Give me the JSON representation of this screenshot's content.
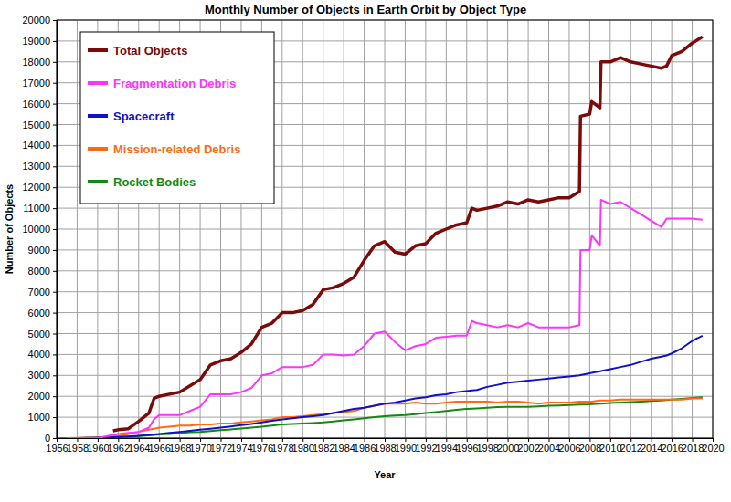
{
  "chart_data": {
    "type": "line",
    "title": "Monthly Number of Objects in Earth Orbit by Object Type",
    "x_label": "Year",
    "y_label": "Number of Objects",
    "x": [
      1957,
      1958,
      1959,
      1960,
      1961.5,
      1962,
      1963,
      1964,
      1965,
      1965.5,
      1966,
      1967,
      1968,
      1969,
      1970,
      1971,
      1972,
      1973,
      1974,
      1975,
      1976,
      1977,
      1978,
      1979,
      1980,
      1981,
      1982,
      1983,
      1984,
      1985,
      1986,
      1987,
      1988,
      1989,
      1990,
      1991,
      1992,
      1993,
      1994,
      1995,
      1996,
      1996.5,
      1997,
      1998,
      1999,
      2000,
      2001,
      2002,
      2003,
      2004,
      2005,
      2006,
      2007,
      2007.1,
      2008,
      2008.2,
      2009,
      2009.1,
      2010,
      2011,
      2012,
      2013,
      2014,
      2015,
      2015.5,
      2016,
      2017,
      2018,
      2019
    ],
    "series": [
      {
        "name": "Total Objects",
        "color": "#7b0a0a",
        "values": [
          null,
          null,
          null,
          null,
          350,
          400,
          450,
          800,
          1200,
          1900,
          2000,
          2100,
          2200,
          2500,
          2800,
          3500,
          3700,
          3800,
          4100,
          4500,
          5300,
          5500,
          6000,
          6000,
          6100,
          6400,
          7100,
          7200,
          7400,
          7700,
          8500,
          9200,
          9400,
          8900,
          8800,
          9200,
          9300,
          9800,
          10000,
          10200,
          10300,
          11000,
          10900,
          11000,
          11100,
          11300,
          11200,
          11400,
          11300,
          11400,
          11500,
          11500,
          11800,
          15400,
          15500,
          16100,
          15800,
          18000,
          18000,
          18200,
          18000,
          17900,
          17800,
          17700,
          17800,
          18300,
          18500,
          18900,
          19200
        ]
      },
      {
        "name": "Fragmentation Debris",
        "color": "#ff33ff",
        "values": [
          0,
          0,
          0,
          0,
          150,
          200,
          250,
          300,
          500,
          900,
          1100,
          1100,
          1100,
          1300,
          1500,
          2100,
          2100,
          2100,
          2200,
          2400,
          3000,
          3100,
          3400,
          3400,
          3400,
          3500,
          4000,
          4000,
          3950,
          4000,
          4400,
          5000,
          5100,
          4600,
          4200,
          4400,
          4500,
          4800,
          4850,
          4900,
          4900,
          5600,
          5500,
          5400,
          5300,
          5400,
          5300,
          5500,
          5300,
          5300,
          5300,
          5300,
          5400,
          9000,
          9000,
          9700,
          9200,
          11400,
          11200,
          11300,
          11000,
          10700,
          10400,
          10100,
          10500,
          10500,
          10500,
          10500,
          10450
        ]
      },
      {
        "name": "Spacecraft",
        "color": "#1010c8",
        "values": [
          0,
          5,
          10,
          20,
          40,
          60,
          80,
          110,
          150,
          175,
          200,
          250,
          300,
          350,
          400,
          450,
          500,
          560,
          620,
          680,
          750,
          830,
          900,
          950,
          1000,
          1050,
          1100,
          1200,
          1300,
          1400,
          1450,
          1550,
          1650,
          1700,
          1800,
          1900,
          1950,
          2050,
          2100,
          2200,
          2250,
          2280,
          2300,
          2450,
          2550,
          2650,
          2700,
          2750,
          2800,
          2850,
          2900,
          2950,
          3000,
          3010,
          3100,
          3120,
          3200,
          3210,
          3300,
          3400,
          3500,
          3650,
          3800,
          3900,
          3950,
          4050,
          4300,
          4650,
          4900
        ]
      },
      {
        "name": "Mission-related Debris",
        "color": "#ff6a13",
        "values": [
          0,
          10,
          20,
          30,
          80,
          100,
          200,
          300,
          400,
          450,
          500,
          550,
          600,
          600,
          650,
          650,
          700,
          700,
          750,
          800,
          850,
          900,
          1000,
          1000,
          1050,
          1100,
          1150,
          1200,
          1250,
          1300,
          1450,
          1550,
          1650,
          1650,
          1650,
          1700,
          1650,
          1650,
          1700,
          1750,
          1750,
          1750,
          1750,
          1750,
          1700,
          1750,
          1750,
          1700,
          1650,
          1700,
          1700,
          1700,
          1750,
          1750,
          1750,
          1750,
          1800,
          1800,
          1800,
          1850,
          1850,
          1850,
          1850,
          1850,
          1850,
          1850,
          1850,
          1900,
          1900
        ]
      },
      {
        "name": "Rocket Bodies",
        "color": "#128a12",
        "values": [
          0,
          3,
          6,
          10,
          30,
          50,
          70,
          100,
          130,
          150,
          170,
          200,
          240,
          280,
          300,
          340,
          380,
          420,
          460,
          500,
          550,
          600,
          650,
          680,
          700,
          720,
          750,
          800,
          850,
          900,
          950,
          1000,
          1050,
          1080,
          1100,
          1150,
          1200,
          1250,
          1300,
          1350,
          1400,
          1410,
          1420,
          1450,
          1480,
          1500,
          1500,
          1500,
          1520,
          1550,
          1560,
          1580,
          1600,
          1600,
          1620,
          1630,
          1650,
          1650,
          1680,
          1700,
          1720,
          1750,
          1780,
          1800,
          1820,
          1850,
          1880,
          1920,
          1960
        ]
      }
    ],
    "xlim": [
      1956,
      2020
    ],
    "xticks": [
      1956,
      1958,
      1960,
      1962,
      1964,
      1966,
      1968,
      1970,
      1972,
      1974,
      1976,
      1978,
      1980,
      1982,
      1984,
      1986,
      1988,
      1990,
      1992,
      1994,
      1996,
      1998,
      2000,
      2002,
      2004,
      2006,
      2008,
      2010,
      2012,
      2014,
      2016,
      2018,
      2020
    ],
    "ylim": [
      0,
      20000
    ],
    "yticks": [
      0,
      1000,
      2000,
      3000,
      4000,
      5000,
      6000,
      7000,
      8000,
      9000,
      10000,
      11000,
      12000,
      13000,
      14000,
      15000,
      16000,
      17000,
      18000,
      19000,
      20000
    ],
    "grid": true,
    "legend": "upper left"
  }
}
